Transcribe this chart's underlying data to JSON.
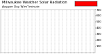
{
  "title": "Milwaukee Weather Solar Radiation",
  "subtitle": "Avg per Day W/m²/minute",
  "background_color": "#ffffff",
  "plot_bg_color": "#ffffff",
  "grid_color": "#aaaaaa",
  "ylim": [
    0,
    700
  ],
  "yticks": [
    100,
    200,
    300,
    400,
    500,
    600,
    700
  ],
  "ylabel_fontsize": 3.0,
  "title_fontsize": 3.8,
  "dot_color_main": "#ff0000",
  "dot_color_black": "#000000",
  "legend_color": "#ff0000",
  "num_points": 730,
  "seed": 7
}
